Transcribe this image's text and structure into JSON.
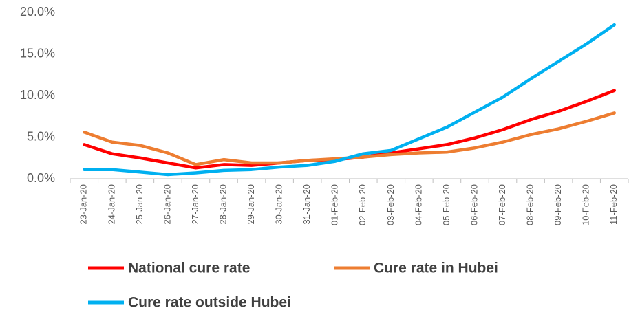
{
  "chart_data": {
    "type": "line",
    "categories": [
      "23-Jan-20",
      "24-Jan-20",
      "25-Jan-20",
      "26-Jan-20",
      "27-Jan-20",
      "28-Jan-20",
      "29-Jan-20",
      "30-Jan-20",
      "31-Jan-20",
      "01-Feb-20",
      "02-Feb-20",
      "03-Feb-20",
      "04-Feb-20",
      "05-Feb-20",
      "06-Feb-20",
      "07-Feb-20",
      "08-Feb-20",
      "09-Feb-20",
      "10-Feb-20",
      "11-Feb-20"
    ],
    "series": [
      {
        "name": "National cure rate",
        "color": "#ff0000",
        "values": [
          4.1,
          3.0,
          2.5,
          1.9,
          1.3,
          1.7,
          1.6,
          1.9,
          2.2,
          2.3,
          2.6,
          3.1,
          3.6,
          4.1,
          4.9,
          5.9,
          7.1,
          8.1,
          9.3,
          10.6
        ]
      },
      {
        "name": "Cure rate in Hubei",
        "color": "#ed7d31",
        "values": [
          5.6,
          4.4,
          4.0,
          3.1,
          1.7,
          2.3,
          1.9,
          1.9,
          2.2,
          2.4,
          2.6,
          2.9,
          3.1,
          3.2,
          3.7,
          4.4,
          5.3,
          6.0,
          6.9,
          7.9
        ]
      },
      {
        "name": "Cure rate outside Hubei",
        "color": "#00b0f0",
        "values": [
          1.1,
          1.1,
          0.8,
          0.5,
          0.7,
          1.0,
          1.1,
          1.4,
          1.6,
          2.1,
          3.0,
          3.4,
          4.8,
          6.2,
          8.0,
          9.8,
          12.0,
          14.1,
          16.2,
          18.5
        ]
      }
    ],
    "ylim": [
      0,
      20
    ],
    "yticks": [
      {
        "value": 0,
        "label": "0.0%"
      },
      {
        "value": 5,
        "label": "5.0%"
      },
      {
        "value": 10,
        "label": "10.0%"
      },
      {
        "value": 15,
        "label": "15.0%"
      },
      {
        "value": 20,
        "label": "20.0%"
      }
    ]
  }
}
